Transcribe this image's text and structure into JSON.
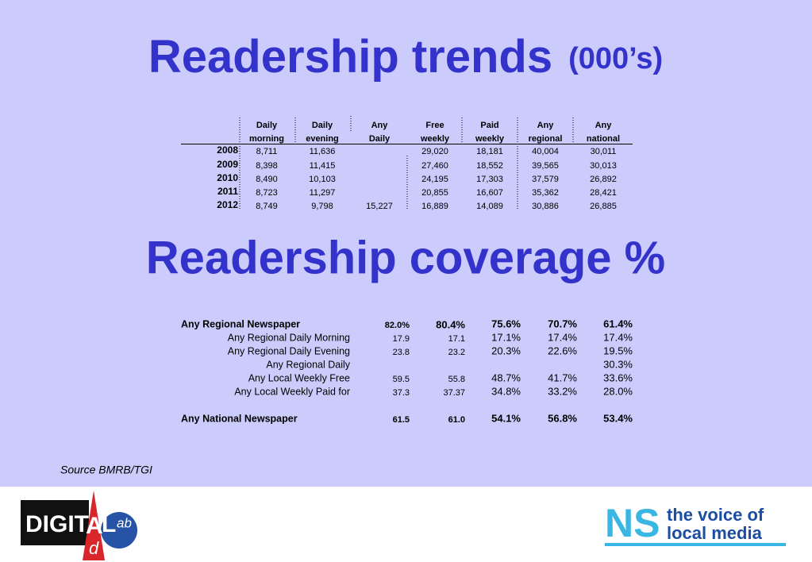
{
  "header": {
    "title": "Readership trends",
    "title_unit": "(000’s)"
  },
  "table1": {
    "columns": [
      [
        "Daily",
        "morning"
      ],
      [
        "Daily",
        "evening"
      ],
      [
        "Any",
        "Daily"
      ],
      [
        "Free",
        "weekly"
      ],
      [
        "Paid",
        "weekly"
      ],
      [
        "Any",
        "regional"
      ],
      [
        "Any",
        "national"
      ]
    ],
    "rows": [
      {
        "year": "2008",
        "values": [
          "8,711",
          "11,636",
          null,
          "29,020",
          "18,181",
          "40,004",
          "30,011"
        ]
      },
      {
        "year": "2009",
        "values": [
          "8,398",
          "11,415",
          null,
          "27,460",
          "18,552",
          "39,565",
          "30,013"
        ]
      },
      {
        "year": "2010",
        "values": [
          "8,490",
          "10,103",
          null,
          "24,195",
          "17,303",
          "37,579",
          "26,892"
        ]
      },
      {
        "year": "2011",
        "values": [
          "8,723",
          "11,297",
          null,
          "20,855",
          "16,607",
          "35,362",
          "28,421"
        ]
      },
      {
        "year": "2012",
        "values": [
          "8,749",
          "9,798",
          "15,227",
          "16,889",
          "14,089",
          "30,886",
          "26,885"
        ]
      }
    ]
  },
  "section2": {
    "title": "Readership coverage %"
  },
  "table2": {
    "rows": [
      {
        "label": "Any Regional Newspaper",
        "bold": true,
        "values": [
          "82.0%",
          "80.4%",
          "75.6%",
          "70.7%",
          "61.4%"
        ]
      },
      {
        "label": "Any Regional Daily Morning",
        "bold": false,
        "values": [
          "17.9",
          "17.1",
          "17.1%",
          "17.4%",
          "17.4%"
        ]
      },
      {
        "label": "Any Regional Daily Evening",
        "bold": false,
        "values": [
          "23.8",
          "23.2",
          "20.3%",
          "22.6%",
          "19.5%"
        ]
      },
      {
        "label": "Any Regional Daily",
        "bold": false,
        "values": [
          null,
          null,
          null,
          null,
          "30.3%"
        ]
      },
      {
        "label": "Any Local Weekly Free",
        "bold": false,
        "values": [
          "59.5",
          "55.8",
          "48.7%",
          "41.7%",
          "33.6%"
        ]
      },
      {
        "label": "Any Local Weekly Paid for",
        "bold": false,
        "values": [
          "37.3",
          "37.37",
          "34.8%",
          "33.2%",
          "28.0%"
        ]
      },
      {
        "label": "Any National Newspaper",
        "bold": true,
        "values": [
          "61.5",
          "61.0",
          "54.1%",
          "56.8%",
          "53.4%"
        ]
      }
    ]
  },
  "source": "Source BMRB/TGI",
  "footer": {
    "left_logo": {
      "main": "DIGIT",
      "a": "A",
      "l": "L",
      "lab": "ab",
      "d": "d"
    },
    "right_logo": {
      "mark": "NS",
      "line1": "the voice of",
      "line2": "local media"
    }
  }
}
